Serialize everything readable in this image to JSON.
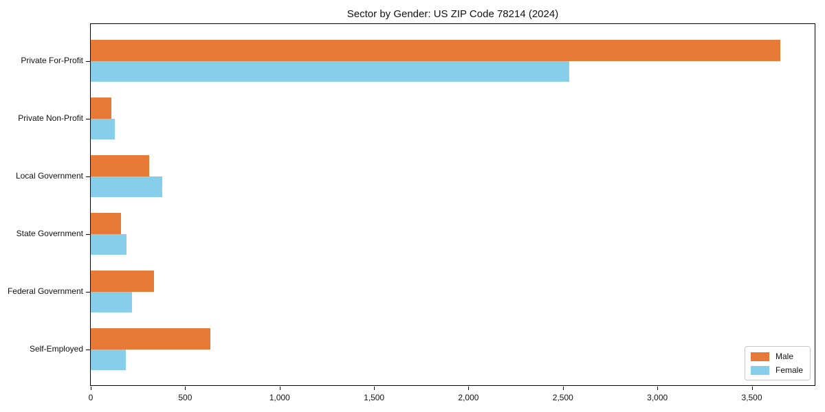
{
  "chart_data": {
    "type": "bar",
    "orientation": "horizontal",
    "title": "Sector by Gender: US ZIP Code 78214 (2024)",
    "categories": [
      "Private For-Profit",
      "Private Non-Profit",
      "Local Government",
      "State Government",
      "Federal Government",
      "Self-Employed"
    ],
    "series": [
      {
        "name": "Male",
        "color": "#e87a38",
        "values": [
          3650,
          110,
          310,
          160,
          335,
          635
        ]
      },
      {
        "name": "Female",
        "color": "#87ceeb",
        "values": [
          2535,
          127,
          380,
          190,
          220,
          185
        ]
      }
    ],
    "xlabel": "",
    "ylabel": "",
    "xlim": [
      0,
      3833
    ],
    "x_ticks": [
      0,
      500,
      1000,
      1500,
      2000,
      2500,
      3000,
      3500
    ],
    "x_tick_labels": [
      "0",
      "500",
      "1,000",
      "1,500",
      "2,000",
      "2,500",
      "3,000",
      "3,500"
    ],
    "grid": false,
    "legend_position": "lower right",
    "colors": {
      "male_bar": "#e87a38",
      "female_bar": "#87ceeb",
      "spine": "#000000",
      "text": "#111111",
      "legend_border": "#c8c8c8",
      "background": "#ffffff"
    }
  }
}
